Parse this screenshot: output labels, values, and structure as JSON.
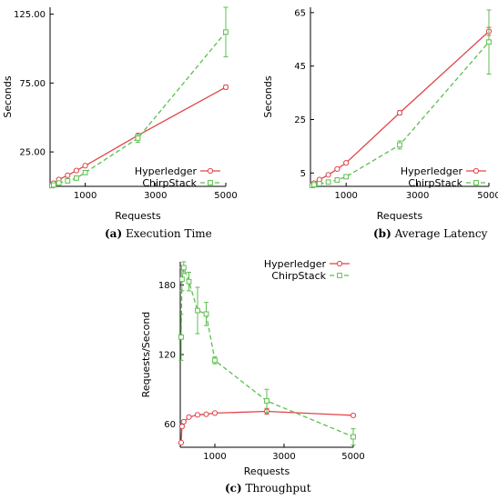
{
  "colors": {
    "hyperledger": "#e0454a",
    "chirpstack": "#5cbf4f",
    "axis": "#000000"
  },
  "chart_data": [
    {
      "type": "line",
      "caption_letter": "(a)",
      "caption_text": "Execution Time",
      "xlabel": "Requests",
      "ylabel": "Seconds",
      "xlim": [
        0,
        5000
      ],
      "ylim": [
        0,
        130
      ],
      "xticks": [
        1000,
        3000,
        5000
      ],
      "yticks": [
        25,
        75,
        125
      ],
      "ytick_labels": [
        "25.00",
        "75.00",
        "125.00"
      ],
      "legend_position": "bottom-right",
      "series": [
        {
          "name": "Hyperledger",
          "style": "solid",
          "marker": "circle",
          "x": [
            50,
            100,
            250,
            500,
            750,
            1000,
            2500,
            5000
          ],
          "y": [
            1.2,
            2.3,
            5.0,
            8.0,
            11.5,
            15.0,
            37.0,
            72.0
          ],
          "err": [
            0.3,
            0.3,
            0.4,
            0.5,
            0.6,
            0.7,
            1.2,
            1.5
          ]
        },
        {
          "name": "ChirpStack",
          "style": "dashed",
          "marker": "square",
          "x": [
            50,
            100,
            250,
            500,
            750,
            1000,
            2500,
            5000
          ],
          "y": [
            0.5,
            1.0,
            2.5,
            4.0,
            6.0,
            10.0,
            35.0,
            112.0
          ],
          "err": [
            0.3,
            0.3,
            0.4,
            0.5,
            0.8,
            1.0,
            3.0,
            18.0
          ]
        }
      ]
    },
    {
      "type": "line",
      "caption_letter": "(b)",
      "caption_text": "Average Latency",
      "xlabel": "Requests",
      "ylabel": "Seconds",
      "xlim": [
        0,
        5000
      ],
      "ylim": [
        0,
        67
      ],
      "xticks": [
        1000,
        3000,
        5000
      ],
      "yticks": [
        5,
        25,
        45,
        65
      ],
      "ytick_labels": [
        "5",
        "25",
        "45",
        "65"
      ],
      "legend_position": "bottom-right",
      "series": [
        {
          "name": "Hyperledger",
          "style": "solid",
          "marker": "circle",
          "x": [
            50,
            100,
            250,
            500,
            750,
            1000,
            2500,
            5000
          ],
          "y": [
            0.6,
            1.2,
            2.5,
            4.3,
            6.5,
            8.8,
            27.5,
            58.0
          ],
          "err": [
            0.2,
            0.2,
            0.3,
            0.3,
            0.4,
            0.5,
            0.8,
            1.5
          ]
        },
        {
          "name": "ChirpStack",
          "style": "dashed",
          "marker": "square",
          "x": [
            50,
            100,
            250,
            500,
            750,
            1000,
            2500,
            5000
          ],
          "y": [
            0.3,
            0.6,
            1.0,
            1.6,
            2.4,
            3.6,
            15.5,
            54.0
          ],
          "err": [
            0.2,
            0.2,
            0.3,
            0.3,
            0.4,
            0.5,
            1.5,
            12.0
          ]
        }
      ]
    },
    {
      "type": "line",
      "caption_letter": "(c)",
      "caption_text": "Throughput",
      "xlabel": "Requests",
      "ylabel": "Requests/Second",
      "xlim": [
        0,
        5000
      ],
      "ylim": [
        40,
        200
      ],
      "xticks": [
        1000,
        3000,
        5000
      ],
      "yticks": [
        60,
        120,
        180
      ],
      "ytick_labels": [
        "60",
        "120",
        "180"
      ],
      "legend_position": "top-right",
      "series": [
        {
          "name": "Hyperledger",
          "style": "solid",
          "marker": "circle",
          "x": [
            25,
            50,
            100,
            250,
            500,
            750,
            1000,
            2500,
            5000
          ],
          "y": [
            44,
            58,
            62,
            66,
            68,
            68.5,
            69.5,
            71,
            67.5
          ],
          "err": [
            0.5,
            1.5,
            1.0,
            1.0,
            1.0,
            1.0,
            1.0,
            2.5,
            1.0
          ]
        },
        {
          "name": "ChirpStack",
          "style": "dashed",
          "marker": "square",
          "x": [
            25,
            50,
            100,
            250,
            500,
            750,
            1000,
            2500,
            5000
          ],
          "y": [
            135,
            185,
            195,
            183,
            158,
            155,
            115,
            80,
            49
          ],
          "err": [
            20,
            10,
            5,
            8,
            20,
            10,
            3,
            10,
            7
          ]
        }
      ]
    }
  ]
}
